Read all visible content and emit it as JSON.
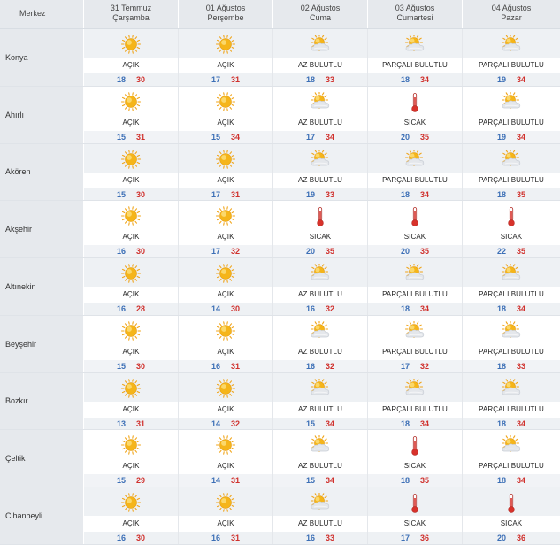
{
  "header": {
    "city_label": "Merkez",
    "days": [
      {
        "date": "31 Temmuz",
        "weekday": "Çarşamba"
      },
      {
        "date": "01 Ağustos",
        "weekday": "Perşembe"
      },
      {
        "date": "02 Ağustos",
        "weekday": "Cuma"
      },
      {
        "date": "03 Ağustos",
        "weekday": "Cumartesi"
      },
      {
        "date": "04 Ağustos",
        "weekday": "Pazar"
      }
    ]
  },
  "colors": {
    "min_temp": "#3c6fb6",
    "max_temp": "#d0312d",
    "sun": "#f5b51a",
    "cloud": "#c9ced6"
  },
  "cities": [
    {
      "name": "Konya",
      "forecasts": [
        {
          "icon": "sun-icon",
          "condition": "AÇIK",
          "min": "18",
          "max": "30"
        },
        {
          "icon": "sun-icon",
          "condition": "AÇIK",
          "min": "17",
          "max": "31"
        },
        {
          "icon": "sun-cloud-icon",
          "condition": "AZ BULUTLU",
          "min": "18",
          "max": "33"
        },
        {
          "icon": "sun-cloud-icon",
          "condition": "PARÇALI BULUTLU",
          "min": "18",
          "max": "34"
        },
        {
          "icon": "sun-cloud-icon",
          "condition": "PARÇALI BULUTLU",
          "min": "19",
          "max": "34"
        }
      ]
    },
    {
      "name": "Ahırlı",
      "forecasts": [
        {
          "icon": "sun-icon",
          "condition": "AÇIK",
          "min": "15",
          "max": "31"
        },
        {
          "icon": "sun-icon",
          "condition": "AÇIK",
          "min": "15",
          "max": "34"
        },
        {
          "icon": "sun-cloud-icon",
          "condition": "AZ BULUTLU",
          "min": "17",
          "max": "34"
        },
        {
          "icon": "thermometer-icon",
          "condition": "SICAK",
          "min": "20",
          "max": "35"
        },
        {
          "icon": "sun-cloud-icon",
          "condition": "PARÇALI BULUTLU",
          "min": "19",
          "max": "34"
        }
      ]
    },
    {
      "name": "Akören",
      "forecasts": [
        {
          "icon": "sun-icon",
          "condition": "AÇIK",
          "min": "15",
          "max": "30"
        },
        {
          "icon": "sun-icon",
          "condition": "AÇIK",
          "min": "17",
          "max": "31"
        },
        {
          "icon": "sun-cloud-icon",
          "condition": "AZ BULUTLU",
          "min": "19",
          "max": "33"
        },
        {
          "icon": "sun-cloud-icon",
          "condition": "PARÇALI BULUTLU",
          "min": "18",
          "max": "34"
        },
        {
          "icon": "sun-cloud-icon",
          "condition": "PARÇALI BULUTLU",
          "min": "18",
          "max": "35"
        }
      ]
    },
    {
      "name": "Akşehir",
      "forecasts": [
        {
          "icon": "sun-icon",
          "condition": "AÇIK",
          "min": "16",
          "max": "30"
        },
        {
          "icon": "sun-icon",
          "condition": "AÇIK",
          "min": "17",
          "max": "32"
        },
        {
          "icon": "thermometer-icon",
          "condition": "SICAK",
          "min": "20",
          "max": "35"
        },
        {
          "icon": "thermometer-icon",
          "condition": "SICAK",
          "min": "20",
          "max": "35"
        },
        {
          "icon": "thermometer-icon",
          "condition": "SICAK",
          "min": "22",
          "max": "35"
        }
      ]
    },
    {
      "name": "Altınekin",
      "forecasts": [
        {
          "icon": "sun-icon",
          "condition": "AÇIK",
          "min": "16",
          "max": "28"
        },
        {
          "icon": "sun-icon",
          "condition": "AÇIK",
          "min": "14",
          "max": "30"
        },
        {
          "icon": "sun-cloud-icon",
          "condition": "AZ BULUTLU",
          "min": "16",
          "max": "32"
        },
        {
          "icon": "sun-cloud-icon",
          "condition": "PARÇALI BULUTLU",
          "min": "18",
          "max": "34"
        },
        {
          "icon": "sun-cloud-icon",
          "condition": "PARÇALI BULUTLU",
          "min": "18",
          "max": "34"
        }
      ]
    },
    {
      "name": "Beyşehir",
      "forecasts": [
        {
          "icon": "sun-icon",
          "condition": "AÇIK",
          "min": "15",
          "max": "30"
        },
        {
          "icon": "sun-icon",
          "condition": "AÇIK",
          "min": "16",
          "max": "31"
        },
        {
          "icon": "sun-cloud-icon",
          "condition": "AZ BULUTLU",
          "min": "16",
          "max": "32"
        },
        {
          "icon": "sun-cloud-icon",
          "condition": "PARÇALI BULUTLU",
          "min": "17",
          "max": "32"
        },
        {
          "icon": "sun-cloud-icon",
          "condition": "PARÇALI BULUTLU",
          "min": "18",
          "max": "33"
        }
      ]
    },
    {
      "name": "Bozkır",
      "forecasts": [
        {
          "icon": "sun-icon",
          "condition": "AÇIK",
          "min": "13",
          "max": "31"
        },
        {
          "icon": "sun-icon",
          "condition": "AÇIK",
          "min": "14",
          "max": "32"
        },
        {
          "icon": "sun-cloud-icon",
          "condition": "AZ BULUTLU",
          "min": "15",
          "max": "34"
        },
        {
          "icon": "sun-cloud-icon",
          "condition": "PARÇALI BULUTLU",
          "min": "18",
          "max": "34"
        },
        {
          "icon": "sun-cloud-icon",
          "condition": "PARÇALI BULUTLU",
          "min": "18",
          "max": "34"
        }
      ]
    },
    {
      "name": "Çeltik",
      "forecasts": [
        {
          "icon": "sun-icon",
          "condition": "AÇIK",
          "min": "15",
          "max": "29"
        },
        {
          "icon": "sun-icon",
          "condition": "AÇIK",
          "min": "14",
          "max": "31"
        },
        {
          "icon": "sun-cloud-icon",
          "condition": "AZ BULUTLU",
          "min": "15",
          "max": "34"
        },
        {
          "icon": "thermometer-icon",
          "condition": "SICAK",
          "min": "18",
          "max": "35"
        },
        {
          "icon": "sun-cloud-icon",
          "condition": "PARÇALI BULUTLU",
          "min": "18",
          "max": "34"
        }
      ]
    },
    {
      "name": "Cihanbeyli",
      "forecasts": [
        {
          "icon": "sun-icon",
          "condition": "AÇIK",
          "min": "16",
          "max": "30"
        },
        {
          "icon": "sun-icon",
          "condition": "AÇIK",
          "min": "16",
          "max": "31"
        },
        {
          "icon": "sun-cloud-icon",
          "condition": "AZ BULUTLU",
          "min": "16",
          "max": "33"
        },
        {
          "icon": "thermometer-icon",
          "condition": "SICAK",
          "min": "17",
          "max": "36"
        },
        {
          "icon": "thermometer-icon",
          "condition": "SICAK",
          "min": "20",
          "max": "36"
        }
      ]
    }
  ]
}
